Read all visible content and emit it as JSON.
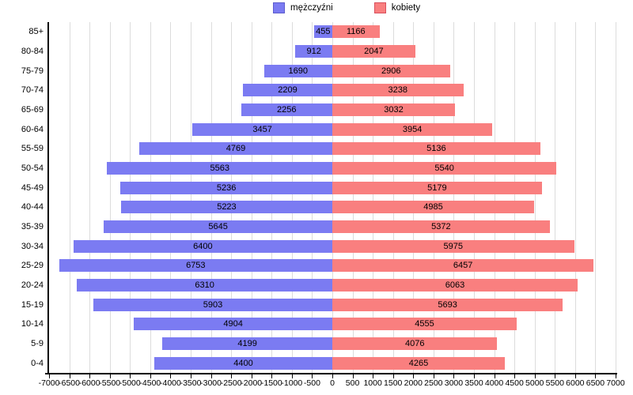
{
  "chart_data": {
    "type": "bar",
    "subtype": "population-pyramid",
    "orientation": "horizontal",
    "title": "",
    "xlabel": "",
    "ylabel": "",
    "categories": [
      "85+",
      "80-84",
      "75-79",
      "70-74",
      "65-69",
      "60-64",
      "55-59",
      "50-54",
      "45-49",
      "40-44",
      "35-39",
      "30-34",
      "25-29",
      "20-24",
      "15-19",
      "10-14",
      "5-9",
      "0-4"
    ],
    "series": [
      {
        "name": "mężczyźni",
        "side": "left",
        "color": "#7b7bf2",
        "border_color": "#5c5ccd",
        "values": [
          455,
          912,
          1690,
          2209,
          2256,
          3457,
          4769,
          5563,
          5236,
          5223,
          5645,
          6400,
          6753,
          6310,
          5903,
          4904,
          4199,
          4400
        ]
      },
      {
        "name": "kobiety",
        "side": "right",
        "color": "#f97f7f",
        "border_color": "#d94f5c",
        "values": [
          1166,
          2047,
          2906,
          3238,
          3032,
          3954,
          5136,
          5540,
          5179,
          4985,
          5372,
          5975,
          6457,
          6063,
          5693,
          4555,
          4076,
          4265
        ]
      }
    ],
    "xlim": [
      -7000,
      7000
    ],
    "x_tick_step": 500,
    "x_ticks": [
      -7000,
      -6500,
      -6000,
      -5500,
      -5000,
      -4500,
      -4000,
      -3500,
      -3000,
      -2500,
      -2000,
      -1500,
      -1000,
      -500,
      0,
      500,
      1000,
      1500,
      2000,
      2500,
      3000,
      3500,
      4000,
      4500,
      5000,
      5500,
      6000,
      6500,
      7000
    ],
    "grid": true,
    "legend_position": "top-center",
    "value_labels": "inside-center",
    "gridline_color": "#dcdcdc",
    "axis_color": "#000000"
  }
}
